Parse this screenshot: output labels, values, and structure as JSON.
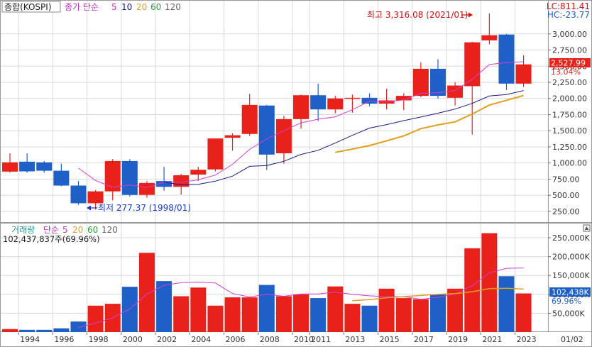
{
  "price_panel": {
    "legend": {
      "symbol": "종합(KOSPI)",
      "ma_label": "종가 단순",
      "ma_periods": [
        "5",
        "10",
        "20",
        "60",
        "120"
      ]
    },
    "top_right": {
      "lc": "LC:811.41",
      "hc": "HC:-23.77"
    },
    "current": {
      "price": "2,527.99",
      "change": "13.04%"
    },
    "annotations": {
      "high": "최고 3,316.08 (2021/01)",
      "low": "최저 277.37 (1998/01)"
    },
    "y_ticks": [
      "3,000.00",
      "2,750.00",
      "2,500.00",
      "2,250.00",
      "2,000.00",
      "1,750.00",
      "1,500.00",
      "1,250.00",
      "1,000.00",
      "750.00",
      "500.00",
      "250.00"
    ]
  },
  "volume_panel": {
    "legend": {
      "title": "거래량",
      "ma_label": "단순",
      "ma_periods": [
        "5",
        "20",
        "60",
        "120"
      ]
    },
    "latest": "102,437,837주(69.96%)",
    "current": {
      "value": "102,438K",
      "pct": "69.96%"
    },
    "y_ticks": [
      "250,000K",
      "200,000K",
      "150,000K",
      "100,000K",
      "50,000K"
    ]
  },
  "x_axis": {
    "labels": [
      "1994",
      "1996",
      "1998",
      "2000",
      "2002",
      "2004",
      "2006",
      "2008",
      "2010",
      "2011",
      "2013",
      "2015",
      "2017",
      "2019",
      "2021",
      "2023"
    ],
    "right_label": "01/02"
  },
  "colors": {
    "up": "#e8221a",
    "down": "#1f5fc8",
    "ma5": "#d63cd6",
    "ma10": "#1a1a8c",
    "ma20": "#e0a020",
    "grid": "#d8d8d8"
  },
  "chart_data": [
    {
      "type": "candlestick",
      "title": "종합(KOSPI)",
      "ylim": [
        0,
        3400
      ],
      "years": [
        1993,
        1994,
        1995,
        1996,
        1997,
        1998,
        1999,
        2000,
        2001,
        2002,
        2003,
        2004,
        2005,
        2006,
        2007,
        2008,
        2009,
        2010,
        2011,
        2012,
        2013,
        2014,
        2015,
        2016,
        2017,
        2018,
        2019,
        2020,
        2021,
        2022,
        2023
      ],
      "open": [
        866,
        1020,
        1010,
        880,
        650,
        376,
        560,
        1030,
        505,
        720,
        630,
        820,
        900,
        1390,
        1450,
        1890,
        1150,
        1680,
        2050,
        1830,
        2000,
        2010,
        1920,
        1970,
        2040,
        2460,
        2010,
        2190,
        2900,
        2990,
        2230
      ],
      "high": [
        1150,
        1150,
        1030,
        990,
        720,
        580,
        1060,
        1060,
        720,
        940,
        830,
        940,
        1380,
        1460,
        2070,
        1900,
        1730,
        2060,
        2230,
        2040,
        2060,
        2080,
        2150,
        2080,
        2560,
        2610,
        2250,
        2880,
        3316.08,
        3000,
        2670
      ],
      "low": [
        850,
        850,
        850,
        640,
        350,
        277.37,
        420,
        480,
        460,
        570,
        510,
        720,
        870,
        1190,
        1420,
        890,
        990,
        1530,
        1650,
        1770,
        1780,
        1880,
        1830,
        1820,
        2020,
        2000,
        1890,
        1440,
        2840,
        2130,
        2180
      ],
      "close": [
        1010,
        870,
        880,
        650,
        376,
        560,
        1030,
        505,
        690,
        630,
        810,
        895,
        1380,
        1430,
        1900,
        1130,
        1680,
        2050,
        1830,
        2000,
        2010,
        1920,
        1970,
        2040,
        2460,
        2040,
        2200,
        2870,
        2980,
        2230,
        2527.99
      ],
      "ma5": [
        null,
        null,
        null,
        null,
        919,
        729,
        624,
        660,
        619,
        701,
        700,
        739,
        813,
        980,
        1211,
        1374,
        1500,
        1622,
        1678,
        1716,
        1826,
        1958,
        1946,
        1977,
        2079,
        2087,
        2123,
        2296,
        2526,
        2556,
        2570
      ],
      "ma10": [
        null,
        null,
        null,
        null,
        null,
        null,
        null,
        null,
        null,
        704,
        662,
        669,
        718,
        796,
        948,
        961,
        1026,
        1133,
        1196,
        1309,
        1429,
        1541,
        1595,
        1656,
        1712,
        1772,
        1836,
        1923,
        2038,
        2061,
        2123
      ],
      "ma20": [
        null,
        null,
        null,
        null,
        null,
        null,
        null,
        null,
        null,
        null,
        null,
        null,
        null,
        null,
        null,
        null,
        null,
        null,
        null,
        1165,
        1215,
        1270,
        1343,
        1420,
        1532,
        1590,
        1637,
        1758,
        1898,
        1972,
        2046
      ]
    },
    {
      "type": "bar",
      "title": "거래량",
      "unit": "K",
      "ylim": [
        0,
        280000
      ],
      "years": [
        1993,
        1994,
        1995,
        1996,
        1997,
        1998,
        1999,
        2000,
        2001,
        2002,
        2003,
        2004,
        2005,
        2006,
        2007,
        2008,
        2009,
        2010,
        2011,
        2012,
        2013,
        2014,
        2015,
        2016,
        2017,
        2018,
        2019,
        2020,
        2021,
        2022,
        2023
      ],
      "values": [
        8000,
        6000,
        6000,
        10000,
        28000,
        70000,
        75000,
        120000,
        210000,
        135000,
        95000,
        118000,
        70000,
        92000,
        92000,
        125000,
        95000,
        100000,
        90000,
        121000,
        75000,
        70000,
        115000,
        90000,
        87000,
        100000,
        115000,
        222000,
        262000,
        148000,
        102437.837
      ],
      "ma5": [
        null,
        null,
        null,
        null,
        12000,
        24000,
        38000,
        61000,
        101000,
        124000,
        131000,
        132000,
        130000,
        102000,
        93000,
        100000,
        95000,
        101000,
        101000,
        106000,
        100000,
        96000,
        94000,
        94000,
        87000,
        92000,
        101000,
        123000,
        157000,
        169000,
        170000
      ],
      "ma20": [
        null,
        null,
        null,
        null,
        null,
        null,
        null,
        null,
        null,
        null,
        null,
        null,
        null,
        null,
        null,
        null,
        null,
        null,
        null,
        null,
        83000,
        86000,
        91000,
        94000,
        97000,
        100000,
        102000,
        107000,
        115000,
        116000,
        114000
      ]
    }
  ]
}
